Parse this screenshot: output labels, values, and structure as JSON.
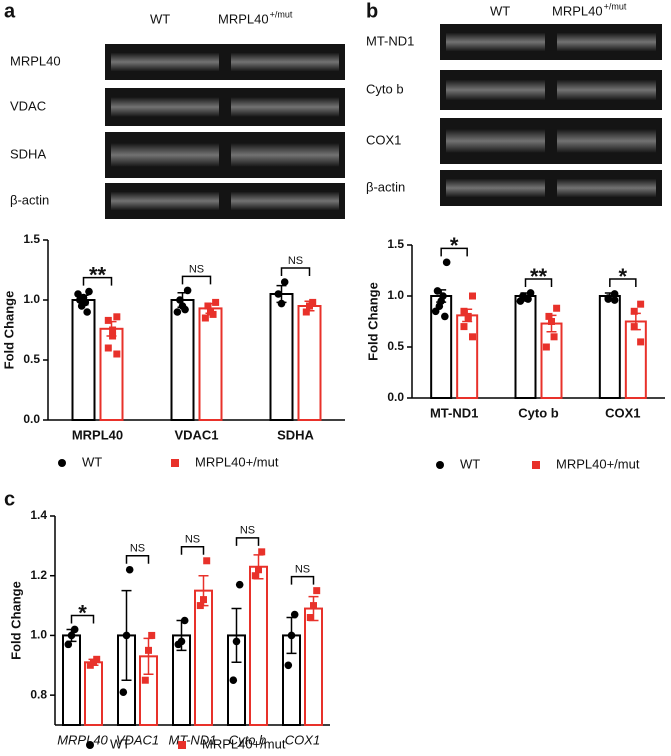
{
  "panels": [
    "a",
    "b",
    "c"
  ],
  "blots": [
    {
      "header": [
        "WT",
        "MRPL40",
        "+/mut"
      ],
      "rows": [
        "MRPL40",
        "VDAC",
        "SDHA",
        "β-actin"
      ]
    },
    {
      "header": [
        "WT",
        "MRPL40",
        "+/mut"
      ],
      "rows": [
        "MT-ND1",
        "Cyto b",
        "COX1",
        "β-actin"
      ]
    }
  ],
  "chart_data": [
    {
      "type": "bar",
      "y_label": "Fold Change",
      "categories": [
        "MRPL40",
        "VDAC1",
        "SDHA"
      ],
      "ylim": [
        0,
        1.5
      ],
      "yticks": [
        {
          "value": 0,
          "label": "0.0"
        },
        0.5,
        {
          "value": 1,
          "label": "1.0"
        },
        1.5
      ],
      "annotations": [
        "**",
        "NS",
        "NS"
      ],
      "series": [
        {
          "name": "WT",
          "color": "#000000",
          "marker": "circle",
          "values": [
            1.0,
            1.0,
            1.05
          ],
          "errors": [
            0.04,
            0.06,
            0.07
          ],
          "points": [
            [
              1.07,
              1.0,
              0.98,
              1.02,
              0.95,
              0.9,
              1.05
            ],
            [
              1.08,
              1.0,
              0.95,
              0.92,
              0.9
            ],
            [
              1.15,
              0.97,
              1.05
            ]
          ]
        },
        {
          "name": "MRPL40+/mut",
          "color": "#e8312a",
          "marker": "square",
          "values": [
            0.76,
            0.93,
            0.95
          ],
          "errors": [
            0.06,
            0.04,
            0.04
          ],
          "points": [
            [
              0.86,
              0.83,
              0.75,
              0.7,
              0.6,
              0.55
            ],
            [
              0.98,
              0.95,
              0.9,
              0.88,
              0.85
            ],
            [
              0.98,
              0.95,
              0.9
            ]
          ]
        }
      ]
    },
    {
      "type": "bar",
      "y_label": "Fold Change",
      "categories": [
        "MT-ND1",
        "Cyto b",
        "COX1"
      ],
      "ylim": [
        0,
        1.5
      ],
      "yticks": [
        {
          "value": 0,
          "label": "0.0"
        },
        0.5,
        {
          "value": 1,
          "label": "1.0"
        },
        1.5
      ],
      "annotations": [
        "*",
        "**",
        "*"
      ],
      "series": [
        {
          "name": "WT",
          "color": "#000000",
          "marker": "circle",
          "values": [
            1.0,
            1.0,
            1.0
          ],
          "errors": [
            0.06,
            0.03,
            0.03
          ],
          "points": [
            [
              1.33,
              1.05,
              1.0,
              0.95,
              0.9,
              0.8,
              0.85
            ],
            [
              1.03,
              1.0,
              0.98,
              0.97,
              0.95
            ],
            [
              1.02,
              0.98,
              0.97,
              0.96
            ]
          ]
        },
        {
          "name": "MRPL40+/mut",
          "color": "#e8312a",
          "marker": "square",
          "values": [
            0.81,
            0.73,
            0.75
          ],
          "errors": [
            0.06,
            0.08,
            0.08
          ],
          "points": [
            [
              1.0,
              0.85,
              0.8,
              0.78,
              0.7,
              0.6
            ],
            [
              0.88,
              0.8,
              0.75,
              0.6,
              0.5
            ],
            [
              0.92,
              0.85,
              0.7,
              0.55
            ]
          ]
        }
      ]
    },
    {
      "type": "bar",
      "y_label": "Fold Change",
      "categories": [
        "MRPL40",
        "VDAC1",
        "MT-ND1",
        "Cyto b",
        "COX1"
      ],
      "ylim": [
        0.7,
        1.4
      ],
      "yticks": [
        0.8,
        {
          "value": 1,
          "label": "1.0"
        },
        1.2,
        1.4
      ],
      "annotations": [
        "*",
        "NS",
        "NS",
        "NS",
        "NS"
      ],
      "series": [
        {
          "name": "WT",
          "color": "#000000",
          "marker": "circle",
          "values": [
            1.0,
            1.0,
            1.0,
            1.0,
            1.0
          ],
          "errors": [
            0.02,
            0.15,
            0.05,
            0.09,
            0.06
          ],
          "points": [
            [
              1.02,
              1.0,
              0.97
            ],
            [
              1.22,
              1.0,
              0.81
            ],
            [
              1.05,
              0.98,
              0.97
            ],
            [
              1.17,
              0.98,
              0.85
            ],
            [
              1.07,
              1.0,
              0.9
            ]
          ]
        },
        {
          "name": "MRPL40+/mut",
          "color": "#e8312a",
          "marker": "square",
          "values": [
            0.91,
            0.93,
            1.15,
            1.23,
            1.09
          ],
          "errors": [
            0.01,
            0.06,
            0.05,
            0.04,
            0.04
          ],
          "points": [
            [
              0.92,
              0.91,
              0.9
            ],
            [
              1.0,
              0.95,
              0.85
            ],
            [
              1.25,
              1.12,
              1.1
            ],
            [
              1.28,
              1.22,
              1.2
            ],
            [
              1.15,
              1.1,
              1.06
            ]
          ]
        }
      ]
    }
  ]
}
